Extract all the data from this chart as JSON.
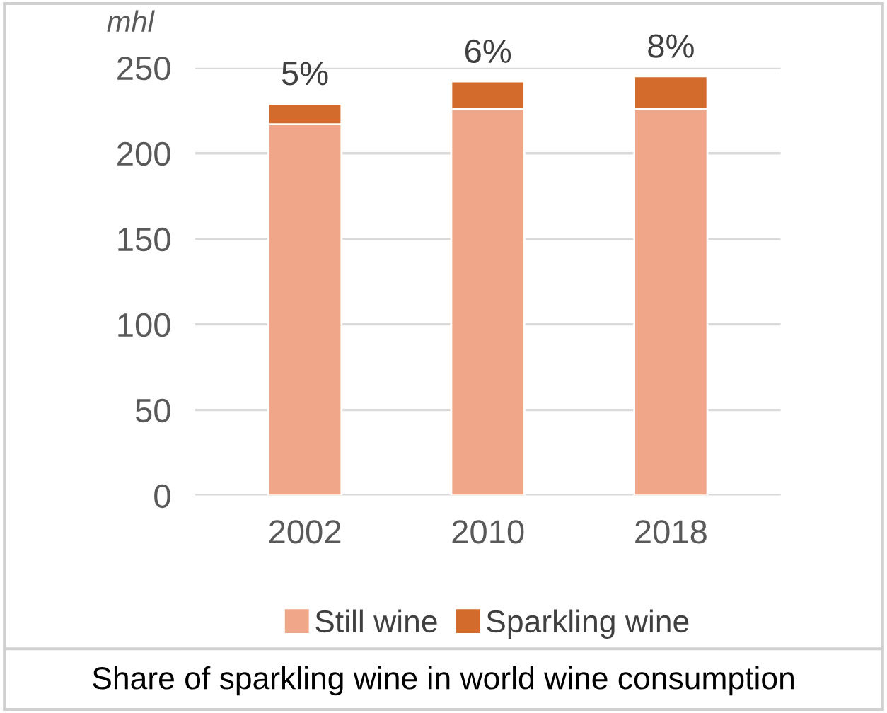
{
  "chart_data": {
    "type": "bar",
    "stacked": true,
    "title": "Share of sparkling wine in world wine consumption",
    "ylabel": "mhl",
    "categories": [
      "2002",
      "2010",
      "2018"
    ],
    "series": [
      {
        "name": "Still wine",
        "color": "#f0a789",
        "values": [
          217,
          226,
          226
        ]
      },
      {
        "name": "Sparkling wine",
        "color": "#d26b2b",
        "values": [
          12,
          16,
          19
        ]
      }
    ],
    "annotations": [
      {
        "text": "5%",
        "x": "2002",
        "y": 229
      },
      {
        "text": "6%",
        "x": "2010",
        "y": 242
      },
      {
        "text": "8%",
        "x": "2018",
        "y": 245
      }
    ],
    "ylim": [
      0,
      250
    ],
    "yticks": [
      0,
      50,
      100,
      150,
      200,
      250
    ],
    "grid": "y",
    "legend": "bottom"
  }
}
